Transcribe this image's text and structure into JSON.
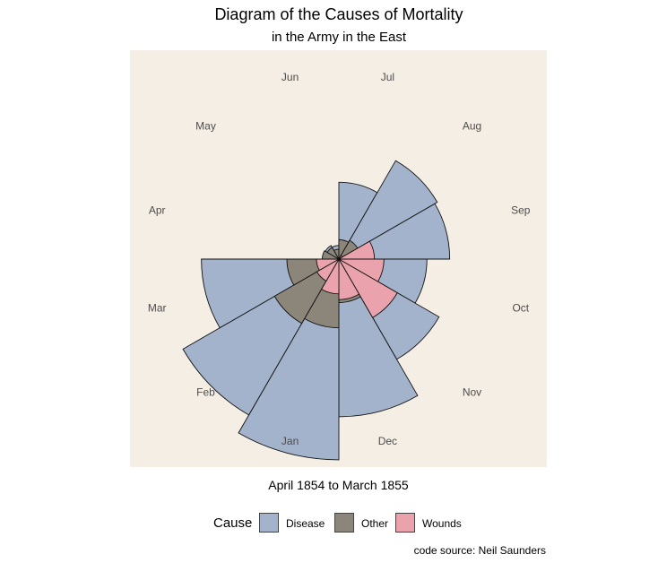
{
  "title": "Diagram of the Causes of Mortality",
  "subtitle": "in the Army in the East",
  "xlabel": "April 1854 to March 1855",
  "legend": {
    "title": "Cause",
    "items": [
      {
        "label": "Disease",
        "color": "#a3b3cb"
      },
      {
        "label": "Other",
        "color": "#8c857a"
      },
      {
        "label": "Wounds",
        "color": "#eaa3ac"
      }
    ]
  },
  "caption": "code source: Neil Saunders",
  "chart_data": {
    "type": "polar-area",
    "months": [
      "Apr",
      "May",
      "Jun",
      "Jul",
      "Aug",
      "Sep",
      "Oct",
      "Nov",
      "Dec",
      "Jan",
      "Feb",
      "Mar"
    ],
    "series": [
      {
        "name": "Disease",
        "color": "#a3b3cb",
        "values": [
          1.4,
          6.2,
          4.7,
          150,
          328,
          312,
          197,
          340,
          631,
          1023,
          823,
          480
        ]
      },
      {
        "name": "Other",
        "color": "#8c857a",
        "values": [
          7.0,
          4.6,
          2.5,
          9.6,
          11.9,
          6.6,
          13.6,
          35.5,
          48.1,
          120,
          140,
          68.6
        ]
      },
      {
        "name": "Wounds",
        "color": "#eaa3ac",
        "values": [
          0,
          0,
          0,
          0,
          0.4,
          32.1,
          51.7,
          115.8,
          41.7,
          30.7,
          16.3,
          12.8
        ]
      }
    ],
    "scale": "sqrt",
    "background": "#f4eee4"
  }
}
